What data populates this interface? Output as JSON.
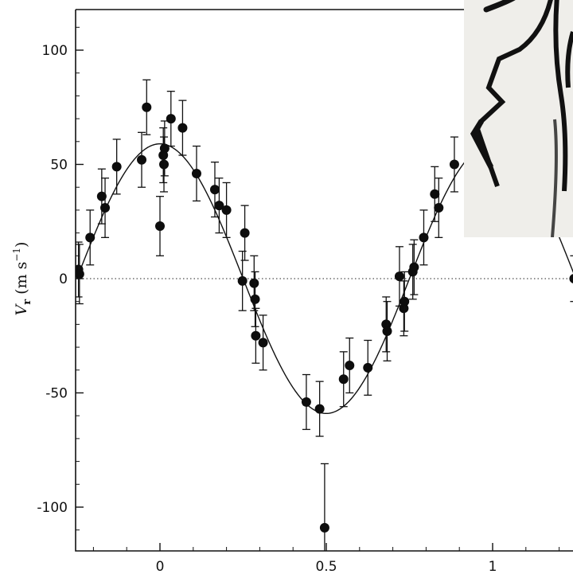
{
  "chart_data": {
    "type": "scatter",
    "title": "",
    "xlabel": "",
    "ylabel": {
      "main": "V",
      "sub": "r",
      "unit_open": " (m s",
      "unit_exp": "−1",
      "unit_close": ")"
    },
    "xlim": [
      -0.25,
      1.25
    ],
    "ylim": [
      -118,
      118
    ],
    "xticks": [
      {
        "value": 0,
        "label": "0"
      },
      {
        "value": 0.5,
        "label": "0.5"
      },
      {
        "value": 1,
        "label": "1"
      }
    ],
    "yticks": [
      {
        "value": 100,
        "label": "100"
      },
      {
        "value": 50,
        "label": "50"
      },
      {
        "value": 0,
        "label": "0"
      },
      {
        "value": -50,
        "label": "-50"
      },
      {
        "value": -100,
        "label": "-100"
      }
    ],
    "zero_line": {
      "y": 0,
      "style": "dotted"
    },
    "fit_curve": {
      "type": "sinusoid",
      "amplitude": 59,
      "phase_of_max": 0.0
    },
    "points": [
      {
        "x": -0.245,
        "y": 4,
        "err": 12
      },
      {
        "x": -0.242,
        "y": 2,
        "err": 13
      },
      {
        "x": -0.21,
        "y": 18,
        "err": 12
      },
      {
        "x": -0.175,
        "y": 36,
        "err": 12
      },
      {
        "x": -0.165,
        "y": 31,
        "err": 13
      },
      {
        "x": -0.13,
        "y": 49,
        "err": 12
      },
      {
        "x": -0.055,
        "y": 52,
        "err": 12
      },
      {
        "x": -0.04,
        "y": 75,
        "err": 12
      },
      {
        "x": 0.0,
        "y": 23,
        "err": 13
      },
      {
        "x": 0.01,
        "y": 54,
        "err": 12
      },
      {
        "x": 0.012,
        "y": 50,
        "err": 12
      },
      {
        "x": 0.014,
        "y": 57,
        "err": 12
      },
      {
        "x": 0.033,
        "y": 70,
        "err": 12
      },
      {
        "x": 0.068,
        "y": 66,
        "err": 12
      },
      {
        "x": 0.11,
        "y": 46,
        "err": 12
      },
      {
        "x": 0.165,
        "y": 39,
        "err": 12
      },
      {
        "x": 0.178,
        "y": 32,
        "err": 12
      },
      {
        "x": 0.2,
        "y": 30,
        "err": 12
      },
      {
        "x": 0.248,
        "y": -1,
        "err": 13
      },
      {
        "x": 0.255,
        "y": 20,
        "err": 12
      },
      {
        "x": 0.283,
        "y": -2,
        "err": 12
      },
      {
        "x": 0.286,
        "y": -9,
        "err": 12
      },
      {
        "x": 0.288,
        "y": -25,
        "err": 12
      },
      {
        "x": 0.31,
        "y": -28,
        "err": 12
      },
      {
        "x": 0.44,
        "y": -54,
        "err": 12
      },
      {
        "x": 0.48,
        "y": -57,
        "err": 12
      },
      {
        "x": 0.495,
        "y": -109,
        "err": 28
      },
      {
        "x": 0.552,
        "y": -44,
        "err": 12
      },
      {
        "x": 0.57,
        "y": -38,
        "err": 12
      },
      {
        "x": 0.625,
        "y": -39,
        "err": 12
      },
      {
        "x": 0.68,
        "y": -20,
        "err": 12
      },
      {
        "x": 0.683,
        "y": -23,
        "err": 13
      },
      {
        "x": 0.72,
        "y": 1,
        "err": 13
      },
      {
        "x": 0.733,
        "y": -13,
        "err": 12
      },
      {
        "x": 0.735,
        "y": -10,
        "err": 13
      },
      {
        "x": 0.76,
        "y": 3,
        "err": 12
      },
      {
        "x": 0.764,
        "y": 5,
        "err": 12
      },
      {
        "x": 0.793,
        "y": 18,
        "err": 12
      },
      {
        "x": 0.826,
        "y": 37,
        "err": 12
      },
      {
        "x": 0.838,
        "y": 31,
        "err": 13
      },
      {
        "x": 0.885,
        "y": 50,
        "err": 12
      },
      {
        "x": 1.245,
        "y": 0,
        "err": 10
      }
    ],
    "grid": false,
    "legend": "none"
  },
  "overlay_image": {
    "icon": "ink-brush-strokes-photo",
    "background": "#efeeea",
    "ink": "#101010"
  }
}
